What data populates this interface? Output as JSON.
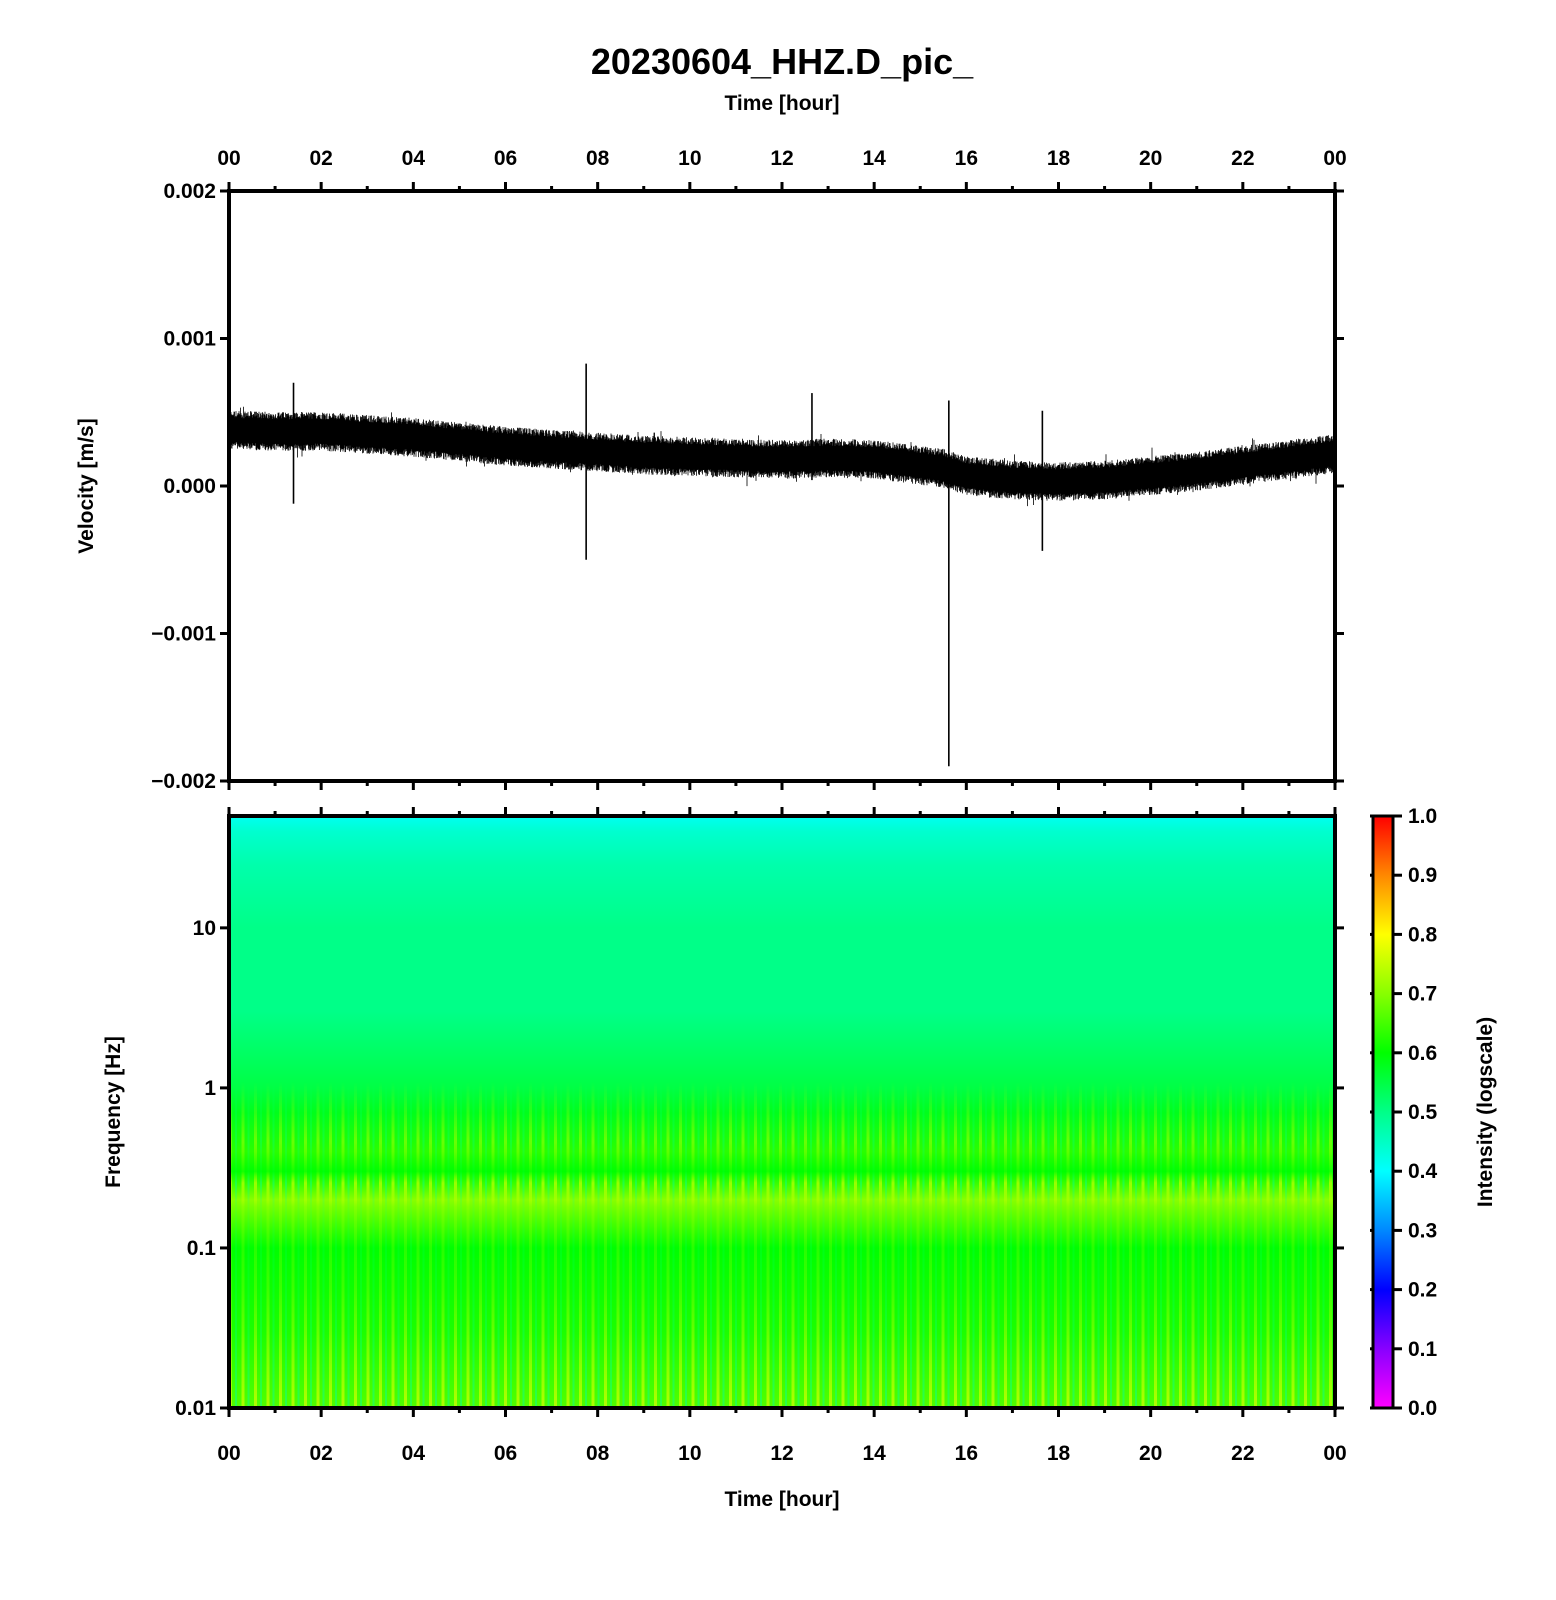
{
  "chart_data": [
    {
      "type": "line",
      "title": "20230604_HHZ.D_pic_",
      "top_axis_label": "Time [hour]",
      "ylabel": "Velocity [m/s]",
      "x_ticks": [
        "00",
        "02",
        "04",
        "06",
        "08",
        "10",
        "12",
        "14",
        "16",
        "18",
        "20",
        "22",
        "00"
      ],
      "xlim": [
        0,
        24
      ],
      "y_ticks": [
        "0.002",
        "0.001",
        "0.000",
        "−0.001",
        "−0.002"
      ],
      "ylim": [
        -0.002,
        0.002
      ],
      "series": [
        {
          "color": "#000000",
          "x": [
            0,
            1,
            2,
            3,
            4,
            5,
            6,
            7,
            8,
            9,
            10,
            11,
            12,
            13,
            14,
            15,
            15.5,
            16,
            17,
            18,
            19,
            20,
            21,
            22,
            23,
            24
          ],
          "baseline": [
            0.00038,
            0.00037,
            0.00037,
            0.00035,
            0.00033,
            0.0003,
            0.00027,
            0.00025,
            0.00023,
            0.00021,
            0.0002,
            0.00019,
            0.00018,
            0.00019,
            0.00018,
            0.00014,
            0.00012,
            7e-05,
            4e-05,
            3e-05,
            4e-05,
            7e-05,
            0.0001,
            0.00014,
            0.00018,
            0.00022
          ],
          "noise_amplitude": 0.00011
        }
      ],
      "spikes": [
        {
          "x": 1.4,
          "min": -0.00012,
          "max": 0.0007
        },
        {
          "x": 7.75,
          "min": -0.0005,
          "max": 0.00083
        },
        {
          "x": 12.65,
          "min": 4e-05,
          "max": 0.00063
        },
        {
          "x": 15.62,
          "min": -0.0019,
          "max": 0.00058
        },
        {
          "x": 17.65,
          "min": -0.00044,
          "max": 0.00051
        }
      ]
    },
    {
      "type": "heatmap",
      "xlabel": "Time [hour]",
      "ylabel": "Frequency [Hz]",
      "x_ticks": [
        "00",
        "02",
        "04",
        "06",
        "08",
        "10",
        "12",
        "14",
        "16",
        "18",
        "20",
        "22",
        "00"
      ],
      "xlim": [
        0,
        24
      ],
      "y_scale": "log",
      "y_ticks": [
        "10",
        "1",
        "0.1",
        "0.01"
      ],
      "ylim": [
        0.01,
        50
      ],
      "intensity_profile": {
        "freq": [
          0.01,
          0.03,
          0.1,
          0.2,
          0.3,
          0.4,
          0.7,
          1,
          3,
          10,
          25,
          40,
          50
        ],
        "intensity": [
          0.66,
          0.62,
          0.6,
          0.7,
          0.6,
          0.63,
          0.58,
          0.55,
          0.5,
          0.5,
          0.47,
          0.44,
          0.41
        ]
      },
      "colorbar": {
        "label": "Intensity (logscale)",
        "ticks": [
          "1.0",
          "0.9",
          "0.8",
          "0.7",
          "0.6",
          "0.5",
          "0.4",
          "0.3",
          "0.2",
          "0.1",
          "0.0"
        ],
        "range": [
          0,
          1
        ],
        "colors": [
          "#ff00ff",
          "#8800ff",
          "#0000ff",
          "#0088ff",
          "#00ffff",
          "#00ff88",
          "#00ff00",
          "#88ff00",
          "#ffff00",
          "#ff8800",
          "#ff0000"
        ]
      }
    }
  ]
}
